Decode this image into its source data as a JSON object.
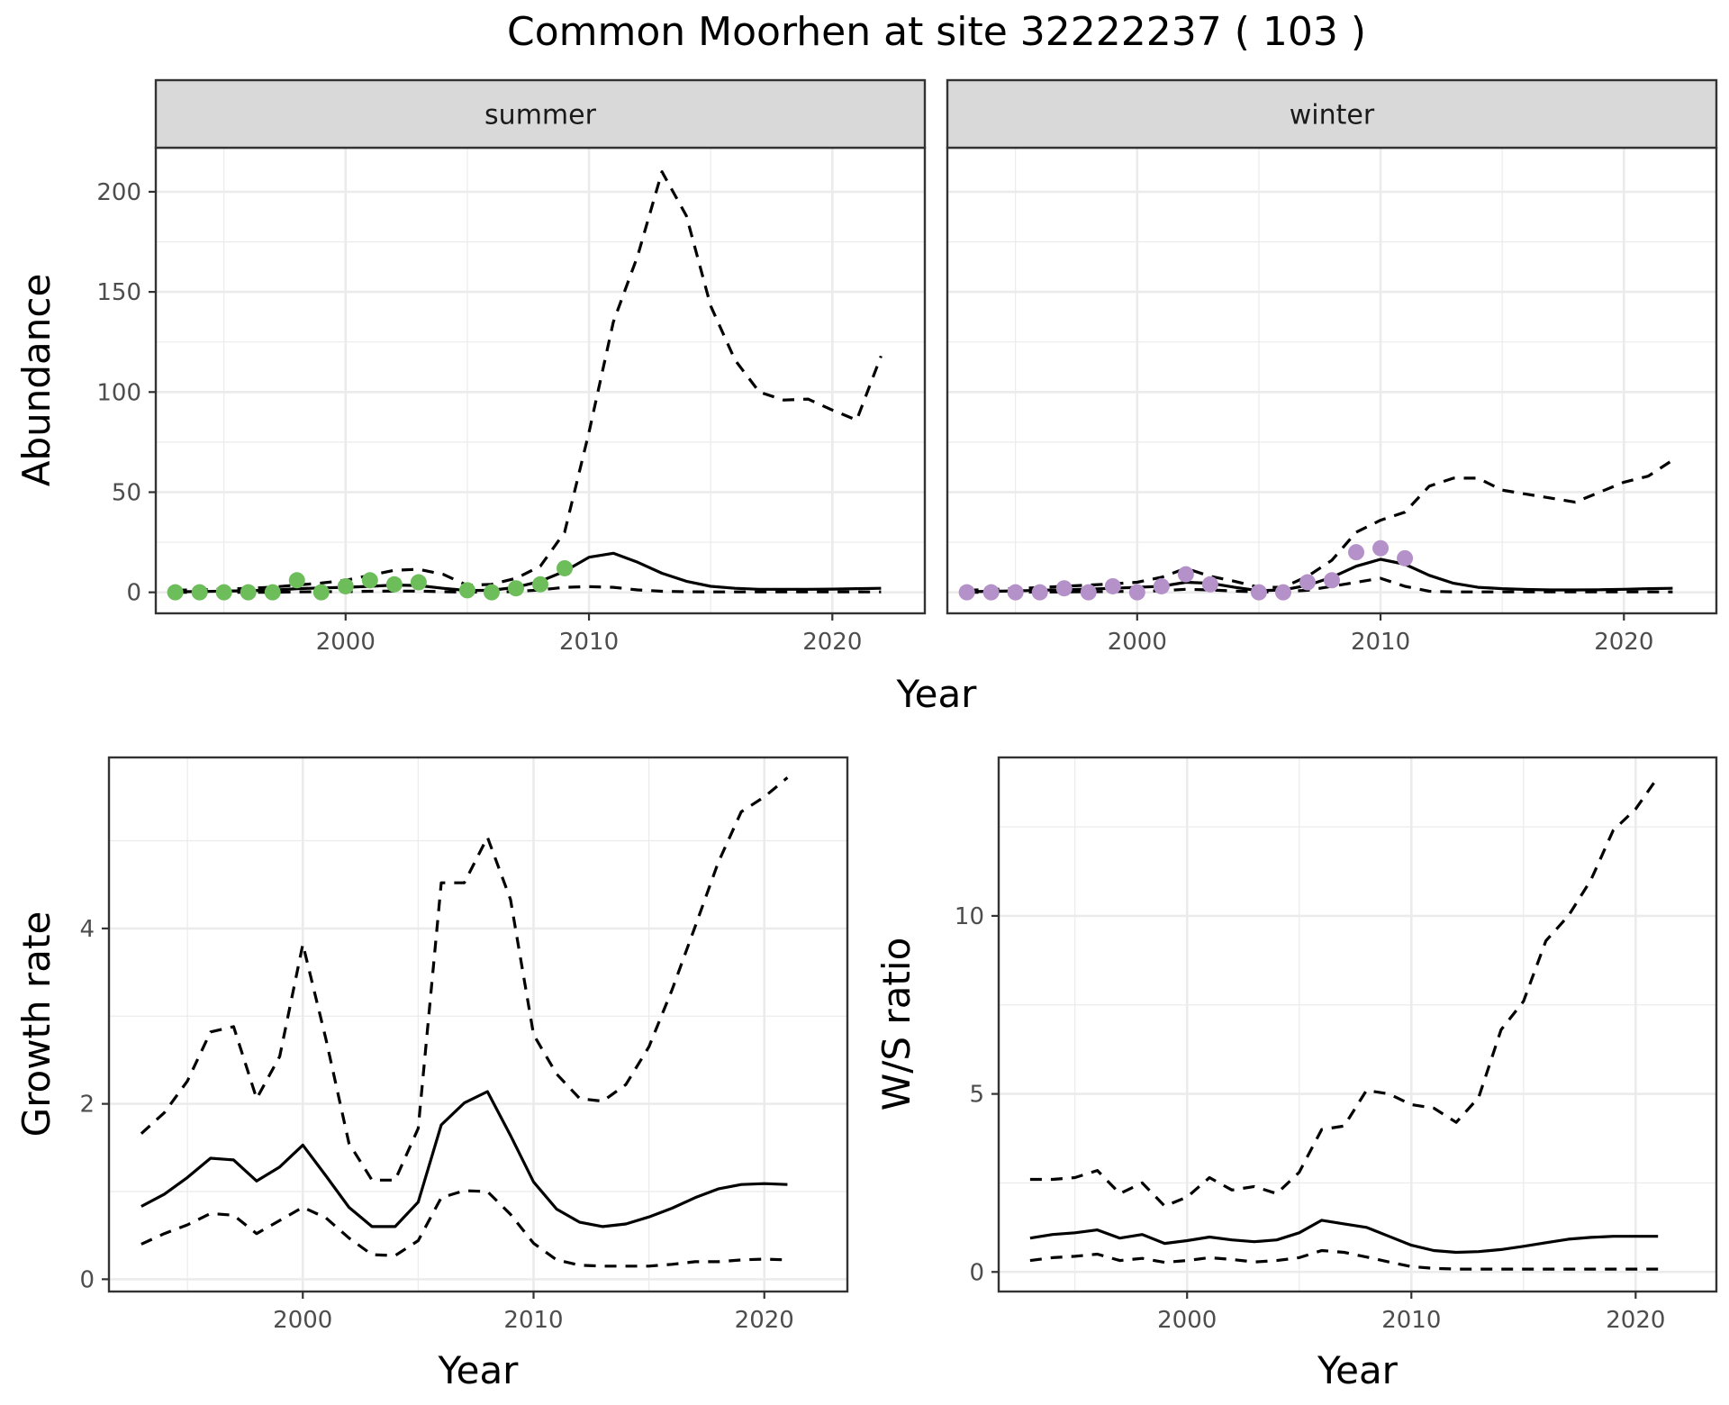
{
  "title": "Common Moorhen at site 32222237 ( 103 )",
  "colors": {
    "summer_points": "#6dbd5b",
    "winter_points": "#b491c8",
    "line": "#000000",
    "strip_fill": "#d9d9d9",
    "grid": "#ebebeb"
  },
  "chart_data": [
    {
      "type": "line",
      "panel": "summer",
      "strip": "summer",
      "xlabel": "Year",
      "ylabel": "Abundance",
      "xlim": [
        1992.2,
        2023.8
      ],
      "ylim": [
        -10.5,
        222
      ],
      "xticks": [
        2000,
        2010,
        2020
      ],
      "yticks": [
        0,
        50,
        100,
        150,
        200
      ],
      "grid": true,
      "x": [
        1993,
        1994,
        1995,
        1996,
        1997,
        1998,
        1999,
        2000,
        2001,
        2002,
        2003,
        2004,
        2005,
        2006,
        2007,
        2008,
        2009,
        2010,
        2011,
        2012,
        2013,
        2014,
        2015,
        2016,
        2017,
        2018,
        2019,
        2020,
        2021,
        2022
      ],
      "series": [
        {
          "role": "estimate",
          "style": "solid",
          "values": [
            0.3,
            0.4,
            0.6,
            0.8,
            1.0,
            1.8,
            2.2,
            2.5,
            3.0,
            3.6,
            3.4,
            2.0,
            0.9,
            1.0,
            2.5,
            5.5,
            10.5,
            17.5,
            19.5,
            15.0,
            9.5,
            5.5,
            3.0,
            2.0,
            1.5,
            1.5,
            1.5,
            1.6,
            1.8,
            2.0
          ]
        },
        {
          "role": "upper",
          "style": "dashed",
          "values": [
            1.0,
            1.3,
            1.6,
            2.0,
            2.6,
            3.6,
            4.6,
            6.0,
            8.5,
            11.0,
            11.5,
            9.0,
            3.5,
            4.0,
            7.0,
            13.0,
            30.0,
            80.0,
            135.0,
            168.0,
            210.0,
            188.0,
            143.0,
            116.0,
            100.0,
            96.0,
            96.5,
            91.0,
            86.0,
            118.0
          ]
        },
        {
          "role": "lower",
          "style": "dashed",
          "values": [
            0.0,
            0.0,
            0.0,
            0.0,
            0.0,
            0.2,
            0.3,
            0.4,
            0.5,
            0.6,
            0.6,
            0.3,
            0.1,
            0.1,
            0.4,
            1.2,
            2.5,
            2.8,
            2.5,
            1.2,
            0.5,
            0.3,
            0.2,
            0.2,
            0.2,
            0.2,
            0.2,
            0.2,
            0.2,
            0.2
          ]
        }
      ],
      "points": {
        "x": [
          1993,
          1994,
          1995,
          1996,
          1997,
          1998,
          1999,
          2000,
          2001,
          2002,
          2003,
          2005,
          2006,
          2007,
          2008,
          2009
        ],
        "y": [
          0,
          0,
          0,
          0,
          0,
          6,
          0,
          3,
          6,
          4,
          5,
          1,
          0,
          2,
          4,
          12
        ]
      }
    },
    {
      "type": "line",
      "panel": "winter",
      "strip": "winter",
      "xlabel": "Year",
      "ylabel": "",
      "xlim": [
        1992.2,
        2023.8
      ],
      "ylim": [
        -10.5,
        222
      ],
      "xticks": [
        2000,
        2010,
        2020
      ],
      "yticks": [],
      "grid": true,
      "x": [
        1993,
        1994,
        1995,
        1996,
        1997,
        1998,
        1999,
        2000,
        2001,
        2002,
        2003,
        2004,
        2005,
        2006,
        2007,
        2008,
        2009,
        2010,
        2011,
        2012,
        2013,
        2014,
        2015,
        2016,
        2017,
        2018,
        2019,
        2020,
        2021,
        2022
      ],
      "series": [
        {
          "role": "estimate",
          "style": "solid",
          "values": [
            0.3,
            0.5,
            0.7,
            1.0,
            1.3,
            1.6,
            2.0,
            2.5,
            3.0,
            5.0,
            4.5,
            2.5,
            0.8,
            1.2,
            3.5,
            7.5,
            13.0,
            16.5,
            14.0,
            8.5,
            4.5,
            2.5,
            1.8,
            1.4,
            1.2,
            1.2,
            1.3,
            1.5,
            1.8,
            2.0
          ]
        },
        {
          "role": "upper",
          "style": "dashed",
          "values": [
            1.0,
            1.4,
            1.8,
            2.4,
            3.0,
            3.6,
            4.2,
            5.0,
            7.5,
            12.0,
            8.0,
            5.5,
            2.5,
            2.5,
            8.0,
            16.0,
            30.0,
            36.0,
            40.0,
            53.0,
            57.0,
            57.0,
            51.0,
            49.0,
            47.0,
            45.0,
            50.0,
            55.0,
            58.0,
            66.0
          ]
        },
        {
          "role": "lower",
          "style": "dashed",
          "values": [
            0.0,
            0.0,
            0.1,
            0.1,
            0.2,
            0.3,
            0.4,
            0.5,
            0.8,
            1.5,
            1.2,
            0.6,
            0.2,
            0.3,
            1.0,
            3.0,
            5.0,
            7.0,
            3.0,
            0.5,
            0.2,
            0.2,
            0.2,
            0.2,
            0.2,
            0.2,
            0.2,
            0.2,
            0.2,
            0.2
          ]
        }
      ],
      "points": {
        "x": [
          1993,
          1994,
          1995,
          1996,
          1997,
          1998,
          1999,
          2000,
          2001,
          2002,
          2003,
          2005,
          2006,
          2007,
          2008,
          2009,
          2010,
          2011
        ],
        "y": [
          0,
          0,
          0,
          0,
          2,
          0,
          3,
          0,
          3,
          9,
          4,
          0,
          0,
          5,
          6,
          20,
          22,
          17
        ]
      }
    },
    {
      "type": "line",
      "panel": "growth",
      "xlabel": "Year",
      "ylabel": "Growth rate",
      "xlim": [
        1991.6,
        2023.6
      ],
      "ylim": [
        -0.14,
        5.95
      ],
      "xticks": [
        2000,
        2010,
        2020
      ],
      "yticks": [
        0,
        2,
        4
      ],
      "grid": true,
      "x": [
        1993,
        1994,
        1995,
        1996,
        1997,
        1998,
        1999,
        2000,
        2001,
        2002,
        2003,
        2004,
        2005,
        2006,
        2007,
        2008,
        2009,
        2010,
        2011,
        2012,
        2013,
        2014,
        2015,
        2016,
        2017,
        2018,
        2019,
        2020,
        2021
      ],
      "series": [
        {
          "role": "estimate",
          "style": "solid",
          "values": [
            0.83,
            0.97,
            1.16,
            1.38,
            1.36,
            1.12,
            1.28,
            1.53,
            1.18,
            0.82,
            0.6,
            0.6,
            0.88,
            1.76,
            2.01,
            2.14,
            1.64,
            1.11,
            0.8,
            0.65,
            0.6,
            0.63,
            0.71,
            0.81,
            0.93,
            1.03,
            1.08,
            1.09,
            1.08
          ]
        },
        {
          "role": "upper",
          "style": "dashed",
          "values": [
            1.66,
            1.9,
            2.26,
            2.82,
            2.88,
            2.06,
            2.54,
            3.82,
            2.74,
            1.55,
            1.13,
            1.13,
            1.72,
            4.52,
            4.52,
            5.04,
            4.33,
            2.79,
            2.34,
            2.06,
            2.03,
            2.22,
            2.65,
            3.3,
            4.02,
            4.75,
            5.33,
            5.5,
            5.72
          ]
        },
        {
          "role": "lower",
          "style": "dashed",
          "values": [
            0.4,
            0.52,
            0.62,
            0.75,
            0.73,
            0.52,
            0.67,
            0.82,
            0.7,
            0.47,
            0.28,
            0.27,
            0.44,
            0.93,
            1.01,
            1.0,
            0.74,
            0.41,
            0.22,
            0.16,
            0.15,
            0.15,
            0.15,
            0.17,
            0.2,
            0.2,
            0.22,
            0.23,
            0.22
          ]
        }
      ]
    },
    {
      "type": "line",
      "panel": "ratio",
      "xlabel": "Year",
      "ylabel": "W/S ratio",
      "xlim": [
        1991.6,
        2023.6
      ],
      "ylim": [
        -0.55,
        14.45
      ],
      "xticks": [
        2000,
        2010,
        2020
      ],
      "yticks": [
        0,
        5,
        10
      ],
      "grid": true,
      "x": [
        1993,
        1994,
        1995,
        1996,
        1997,
        1998,
        1999,
        2000,
        2001,
        2002,
        2003,
        2004,
        2005,
        2006,
        2007,
        2008,
        2009,
        2010,
        2011,
        2012,
        2013,
        2014,
        2015,
        2016,
        2017,
        2018,
        2019,
        2020,
        2021
      ],
      "series": [
        {
          "role": "estimate",
          "style": "solid",
          "values": [
            0.95,
            1.05,
            1.1,
            1.18,
            0.95,
            1.05,
            0.8,
            0.88,
            0.98,
            0.9,
            0.85,
            0.9,
            1.1,
            1.45,
            1.35,
            1.25,
            1.0,
            0.75,
            0.6,
            0.55,
            0.57,
            0.63,
            0.72,
            0.82,
            0.92,
            0.97,
            1.0,
            1.0,
            1.0
          ]
        },
        {
          "role": "upper",
          "style": "dashed",
          "values": [
            2.6,
            2.6,
            2.65,
            2.85,
            2.2,
            2.5,
            1.85,
            2.1,
            2.65,
            2.3,
            2.4,
            2.2,
            2.8,
            4.0,
            4.1,
            5.1,
            5.0,
            4.7,
            4.6,
            4.2,
            4.9,
            6.8,
            7.6,
            9.3,
            10.0,
            11.0,
            12.4,
            13.0,
            13.9
          ]
        },
        {
          "role": "lower",
          "style": "dashed",
          "values": [
            0.32,
            0.4,
            0.44,
            0.5,
            0.32,
            0.38,
            0.27,
            0.32,
            0.4,
            0.35,
            0.28,
            0.32,
            0.4,
            0.6,
            0.55,
            0.42,
            0.28,
            0.15,
            0.1,
            0.08,
            0.08,
            0.08,
            0.08,
            0.08,
            0.08,
            0.08,
            0.08,
            0.08,
            0.08
          ]
        }
      ]
    }
  ]
}
